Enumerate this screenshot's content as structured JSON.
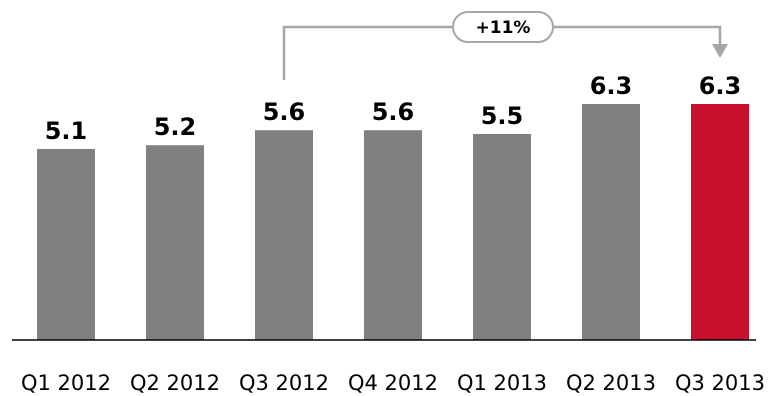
{
  "chart_data": {
    "type": "bar",
    "categories": [
      "Q1 2012",
      "Q2 2012",
      "Q3 2012",
      "Q4 2012",
      "Q1 2013",
      "Q2 2013",
      "Q3 2013"
    ],
    "values": [
      5.1,
      5.2,
      5.6,
      5.6,
      5.5,
      6.3,
      6.3
    ],
    "data_labels": [
      "5.1",
      "5.2",
      "5.6",
      "5.6",
      "5.5",
      "6.3",
      "6.3"
    ],
    "highlight_index": 6,
    "colors": {
      "bar": "#808080",
      "highlight": "#c8102e",
      "axis": "#000000",
      "callout": "#a6a6a6"
    },
    "annotation": {
      "text": "+11%",
      "from_category": "Q3 2012",
      "to_category": "Q3 2013"
    },
    "ylim": [
      0,
      6.3
    ],
    "grid": false,
    "legend": "none",
    "title": "",
    "xlabel": "",
    "ylabel": ""
  }
}
